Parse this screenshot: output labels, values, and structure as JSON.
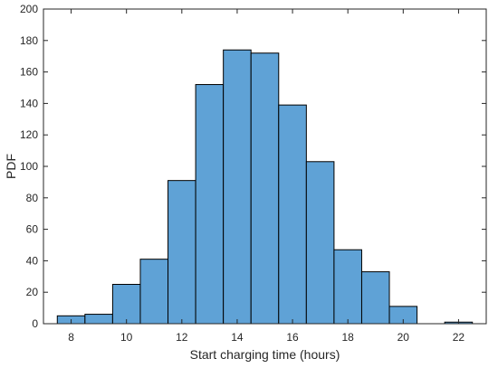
{
  "chart_data": {
    "type": "bar",
    "subtype": "histogram",
    "title": "",
    "xlabel": "Start charging time (hours)",
    "ylabel": "PDF",
    "bin_edges": [
      7.5,
      8.5,
      9.5,
      10.5,
      11.5,
      12.5,
      13.5,
      14.5,
      15.5,
      16.5,
      17.5,
      18.5,
      19.5,
      20.5,
      21.5,
      22.5
    ],
    "values": [
      5,
      6,
      25,
      41,
      91,
      152,
      174,
      172,
      139,
      103,
      47,
      33,
      11,
      0,
      1
    ],
    "xlim": [
      7,
      23
    ],
    "ylim": [
      0,
      200
    ],
    "xticks": [
      8,
      10,
      12,
      14,
      16,
      18,
      20,
      22
    ],
    "yticks": [
      0,
      20,
      40,
      60,
      80,
      100,
      120,
      140,
      160,
      180,
      200
    ],
    "grid": false,
    "legend": "none",
    "bar_color": "#5fa2d6",
    "edge_color": "#000000"
  }
}
